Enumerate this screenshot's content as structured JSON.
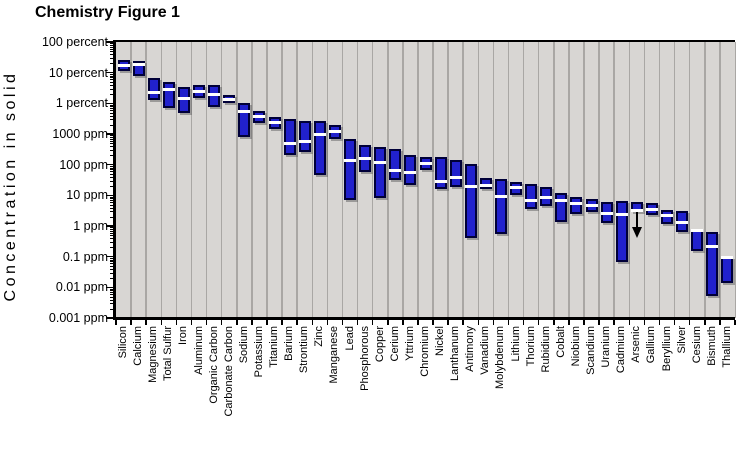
{
  "title": "Chemistry Figure 1",
  "y_axis": {
    "label": "Concentration in solid",
    "ticks": [
      "100 percent",
      "10 percent",
      "1 percent",
      "1000 ppm",
      "100 ppm",
      "10 ppm",
      "1 ppm",
      "0.1 ppm",
      "0.01 ppm",
      "0.001 ppm"
    ]
  },
  "chart_data": {
    "type": "bar",
    "subtype": "floating-range-bars-with-median-line",
    "title": "Chemistry Figure 1",
    "ylabel": "Concentration in solid",
    "y_scale": "log10",
    "y_unit": "ppm",
    "ylim_ppm": [
      0.001,
      1000000
    ],
    "y_tick_labels": [
      "100 percent",
      "10 percent",
      "1 percent",
      "1000 ppm",
      "100 ppm",
      "10 ppm",
      "1 ppm",
      "0.1 ppm",
      "0.01 ppm",
      "0.001 ppm"
    ],
    "grid": "vertical-column-separators",
    "legend": "none",
    "colors": {
      "bar_fill": "#2121cd",
      "bar_border": "#000038",
      "median_line": "#ffffff",
      "plot_bg": "#d8d6d3",
      "separator": "#a9a7a4",
      "axis": "#000000"
    },
    "note_arsenic": "Arsenic bar has a downward arrow indicating values extend below the bar",
    "elements": [
      {
        "name": "Silicon",
        "min_ppm": 110000,
        "median_ppm": 170000,
        "max_ppm": 250000
      },
      {
        "name": "Calcium",
        "min_ppm": 76000,
        "median_ppm": 185000,
        "max_ppm": 240000
      },
      {
        "name": "Magnesium",
        "min_ppm": 13000,
        "median_ppm": 22000,
        "max_ppm": 66000
      },
      {
        "name": "Total Sulfur",
        "min_ppm": 6900,
        "median_ppm": 28000,
        "max_ppm": 51000
      },
      {
        "name": "Iron",
        "min_ppm": 4700,
        "median_ppm": 14000,
        "max_ppm": 35000
      },
      {
        "name": "Aluminum",
        "min_ppm": 14500,
        "median_ppm": 25000,
        "max_ppm": 40000
      },
      {
        "name": "Organic Carbon",
        "min_ppm": 7800,
        "median_ppm": 19000,
        "max_ppm": 40000
      },
      {
        "name": "Carbonate Carbon",
        "min_ppm": 10000,
        "median_ppm": 13500,
        "max_ppm": 19000
      },
      {
        "name": "Sodium",
        "min_ppm": 800,
        "median_ppm": 5300,
        "max_ppm": 10500
      },
      {
        "name": "Potassium",
        "min_ppm": 2200,
        "median_ppm": 3700,
        "max_ppm": 5700
      },
      {
        "name": "Titanium",
        "min_ppm": 1500,
        "median_ppm": 2300,
        "max_ppm": 3600
      },
      {
        "name": "Barium",
        "min_ppm": 200,
        "median_ppm": 490,
        "max_ppm": 3200
      },
      {
        "name": "Strontium",
        "min_ppm": 260,
        "median_ppm": 550,
        "max_ppm": 2600
      },
      {
        "name": "Zinc",
        "min_ppm": 45,
        "median_ppm": 1000,
        "max_ppm": 2700
      },
      {
        "name": "Manganese",
        "min_ppm": 710,
        "median_ppm": 1200,
        "max_ppm": 1900
      },
      {
        "name": "Lead",
        "min_ppm": 7,
        "median_ppm": 140,
        "max_ppm": 710
      },
      {
        "name": "Phosphorous",
        "min_ppm": 57,
        "median_ppm": 155,
        "max_ppm": 430
      },
      {
        "name": "Copper",
        "min_ppm": 8,
        "median_ppm": 120,
        "max_ppm": 380
      },
      {
        "name": "Cerium",
        "min_ppm": 31,
        "median_ppm": 65,
        "max_ppm": 330
      },
      {
        "name": "Yttrium",
        "min_ppm": 21,
        "median_ppm": 57,
        "max_ppm": 200
      },
      {
        "name": "Chromium",
        "min_ppm": 65,
        "median_ppm": 107,
        "max_ppm": 178
      },
      {
        "name": "Nickel",
        "min_ppm": 16,
        "median_ppm": 29,
        "max_ppm": 178
      },
      {
        "name": "Lanthanum",
        "min_ppm": 19,
        "median_ppm": 37,
        "max_ppm": 138
      },
      {
        "name": "Antimony",
        "min_ppm": 0.42,
        "median_ppm": 20,
        "max_ppm": 107
      },
      {
        "name": "Vanadium",
        "min_ppm": 16,
        "median_ppm": 21,
        "max_ppm": 37
      },
      {
        "name": "Molybdenum",
        "min_ppm": 0.55,
        "median_ppm": 9,
        "max_ppm": 35
      },
      {
        "name": "Lithium",
        "min_ppm": 10,
        "median_ppm": 18,
        "max_ppm": 27
      },
      {
        "name": "Thorium",
        "min_ppm": 3.6,
        "median_ppm": 6.6,
        "max_ppm": 24
      },
      {
        "name": "Rubidium",
        "min_ppm": 4.5,
        "median_ppm": 8.5,
        "max_ppm": 19
      },
      {
        "name": "Cobalt",
        "min_ppm": 1.3,
        "median_ppm": 6.8,
        "max_ppm": 12
      },
      {
        "name": "Niobium",
        "min_ppm": 2.5,
        "median_ppm": 5.5,
        "max_ppm": 8.7
      },
      {
        "name": "Scandium",
        "min_ppm": 2.8,
        "median_ppm": 4.7,
        "max_ppm": 7.6
      },
      {
        "name": "Uranium",
        "min_ppm": 1.3,
        "median_ppm": 2.6,
        "max_ppm": 5.9
      },
      {
        "name": "Cadmium",
        "min_ppm": 0.065,
        "median_ppm": 2.3,
        "max_ppm": 6.3
      },
      {
        "name": "Arsenic",
        "min_ppm": 2.8,
        "median_ppm": 3.2,
        "max_ppm": 5.9,
        "arrow_down_to_ppm": 0.4
      },
      {
        "name": "Gallium",
        "min_ppm": 2.2,
        "median_ppm": 3.4,
        "max_ppm": 5.5
      },
      {
        "name": "Beryllium",
        "min_ppm": 1.2,
        "median_ppm": 2.2,
        "max_ppm": 3.3
      },
      {
        "name": "Silver",
        "min_ppm": 0.62,
        "median_ppm": 1.35,
        "max_ppm": 3.0
      },
      {
        "name": "Cesium",
        "min_ppm": 0.155,
        "median_ppm": 0.72,
        "max_ppm": 0.74
      },
      {
        "name": "Bismuth",
        "min_ppm": 0.0052,
        "median_ppm": 0.21,
        "max_ppm": 0.66
      },
      {
        "name": "Thallium",
        "min_ppm": 0.014,
        "median_ppm": 0.097,
        "max_ppm": 0.1
      }
    ]
  }
}
